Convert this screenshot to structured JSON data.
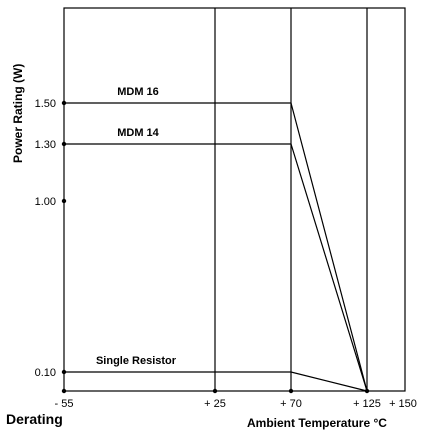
{
  "chart_data": {
    "type": "line",
    "title": "Derating",
    "xlabel": "Ambient Temperature °C",
    "ylabel": "Power Rating (W)",
    "x_ticks": [
      {
        "value": -55,
        "label": "- 55"
      },
      {
        "value": 25,
        "label": "+ 25"
      },
      {
        "value": 70,
        "label": "+ 70"
      },
      {
        "value": 125,
        "label": "+ 125"
      },
      {
        "value": 150,
        "label": "+ 150"
      }
    ],
    "y_ticks": [
      {
        "value": 0.1,
        "label": "0.10"
      },
      {
        "value": 1.0,
        "label": "1.00"
      },
      {
        "value": 1.3,
        "label": "1.30"
      },
      {
        "value": 1.5,
        "label": "1.50"
      }
    ],
    "xlim": [
      -55,
      150
    ],
    "ylim": [
      0,
      1.9
    ],
    "grid": {
      "vertical_at": [
        25,
        70,
        125
      ]
    },
    "series": [
      {
        "name": "MDM 16",
        "x": [
          -55,
          70,
          125
        ],
        "y": [
          1.5,
          1.5,
          0
        ]
      },
      {
        "name": "MDM 14",
        "x": [
          -55,
          70,
          125
        ],
        "y": [
          1.3,
          1.3,
          0
        ]
      },
      {
        "name": "Single Resistor",
        "x": [
          -55,
          70,
          125
        ],
        "y": [
          0.1,
          0.1,
          0
        ]
      }
    ],
    "line_color": "#000000"
  }
}
